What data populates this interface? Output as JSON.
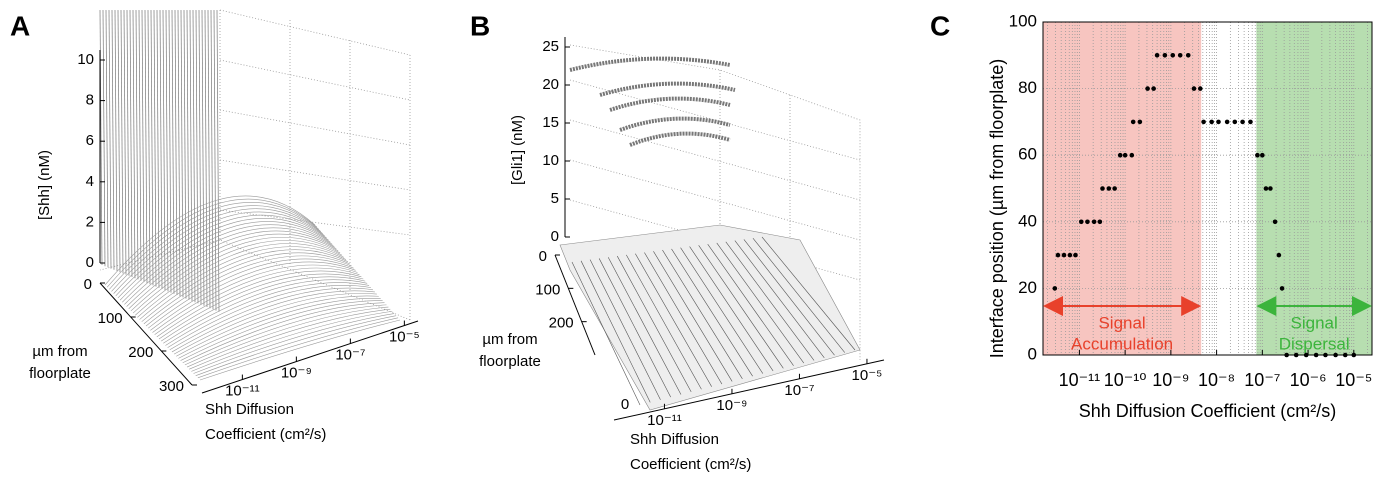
{
  "chart_data": [
    {
      "type": "surface3d",
      "panel": "A",
      "zlabel": "[Shh] (nM)",
      "ylabel": [
        "µm from",
        "floorplate"
      ],
      "xlabel": [
        "Shh Diffusion",
        "Coefficient (cm²/s)"
      ],
      "zlim": [
        0,
        10
      ],
      "zticks": [
        0,
        2,
        4,
        6,
        8,
        10
      ],
      "ylim": [
        0,
        300
      ],
      "yticks": [
        0,
        100,
        200,
        300
      ],
      "xlim": [
        3.2e-13,
        3.2e-05
      ],
      "xscale": "log",
      "xticks": [
        {
          "value": 1e-11,
          "label": "10⁻¹¹"
        },
        {
          "value": 1e-09,
          "label": "10⁻⁹"
        },
        {
          "value": 1e-07,
          "label": "10⁻⁷"
        },
        {
          "value": 1e-05,
          "label": "10⁻⁵"
        }
      ]
    },
    {
      "type": "surface3d",
      "panel": "B",
      "zlabel": "[Gli1] (nM)",
      "ylabel": [
        "µm from",
        "floorplate"
      ],
      "xlabel": [
        "Shh Diffusion",
        "Coefficient (cm²/s)"
      ],
      "zlim": [
        0,
        25
      ],
      "zticks": [
        0,
        5,
        10,
        15,
        20,
        25
      ],
      "ylim": [
        0,
        300
      ],
      "yticks": [
        0,
        100,
        200
      ],
      "xlim": [
        3.2e-13,
        3.2e-05
      ],
      "xscale": "log",
      "xticks": [
        {
          "value": 1e-11,
          "label": "10⁻¹¹"
        },
        {
          "value": 1e-09,
          "label": "10⁻⁹"
        },
        {
          "value": 1e-07,
          "label": "10⁻⁷"
        },
        {
          "value": 1e-05,
          "label": "10⁻⁵"
        }
      ],
      "annotation": "0"
    },
    {
      "type": "scatter",
      "panel": "C",
      "xlabel": "Shh Diffusion Coefficient (cm²/s)",
      "ylabel": "Interface position (µm from floorplate)",
      "xscale": "log",
      "grid": true,
      "color": "#000000",
      "xlim": [
        1.6e-12,
        2.5e-05
      ],
      "xticks": [
        {
          "value": 1e-11,
          "label": "10⁻¹¹"
        },
        {
          "value": 1e-10,
          "label": "10⁻¹⁰"
        },
        {
          "value": 1e-09,
          "label": "10⁻⁹"
        },
        {
          "value": 1e-08,
          "label": "10⁻⁸"
        },
        {
          "value": 1e-07,
          "label": "10⁻⁷"
        },
        {
          "value": 1e-06,
          "label": "10⁻⁶"
        },
        {
          "value": 1e-05,
          "label": "10⁻⁵"
        }
      ],
      "ylim": [
        0,
        100
      ],
      "yticks": [
        0,
        20,
        40,
        60,
        80,
        100
      ],
      "x": [
        2.9e-12,
        3.4e-12,
        4.6e-12,
        6.2e-12,
        8.2e-12,
        1.1e-11,
        1.5e-11,
        2.1e-11,
        2.8e-11,
        3.2e-11,
        4.4e-11,
        5.9e-11,
        7.8e-11,
        1e-10,
        1.4e-10,
        1.5e-10,
        2.1e-10,
        3.1e-10,
        4.2e-10,
        5e-10,
        7.4e-10,
        1.1e-09,
        1.6e-09,
        2.4e-09,
        3.2e-09,
        4.4e-09,
        5.2e-09,
        7.8e-09,
        1.1e-08,
        1.7e-08,
        2.5e-08,
        3.7e-08,
        5.5e-08,
        7.8e-08,
        1e-07,
        1.2e-07,
        1.5e-07,
        1.9e-07,
        2.3e-07,
        2.7e-07,
        3.4e-07,
        5.5e-07,
        9.1e-07,
        1.5e-06,
        2.4e-06,
        4e-06,
        6.5e-06,
        1e-05
      ],
      "values": [
        20,
        30,
        30,
        30,
        30,
        40,
        40,
        40,
        40,
        50,
        50,
        50,
        60,
        60,
        60,
        70,
        70,
        80,
        80,
        90,
        90,
        90,
        90,
        90,
        80,
        80,
        70,
        70,
        70,
        70,
        70,
        70,
        70,
        60,
        60,
        50,
        50,
        40,
        30,
        20,
        0,
        0,
        0,
        0,
        0,
        0,
        0,
        0
      ],
      "regions": [
        {
          "x0": 1.6e-12,
          "x1": 4.6e-09,
          "color": "#f7c5c0",
          "arrow_color": "#e8412b",
          "label": [
            "Signal",
            "Accumulation"
          ]
        },
        {
          "x0": 7.4e-08,
          "x1": 2.5e-05,
          "color": "#b7deb0",
          "arrow_color": "#3cb43c",
          "label": [
            "Signal",
            "Dispersal"
          ]
        }
      ]
    }
  ]
}
